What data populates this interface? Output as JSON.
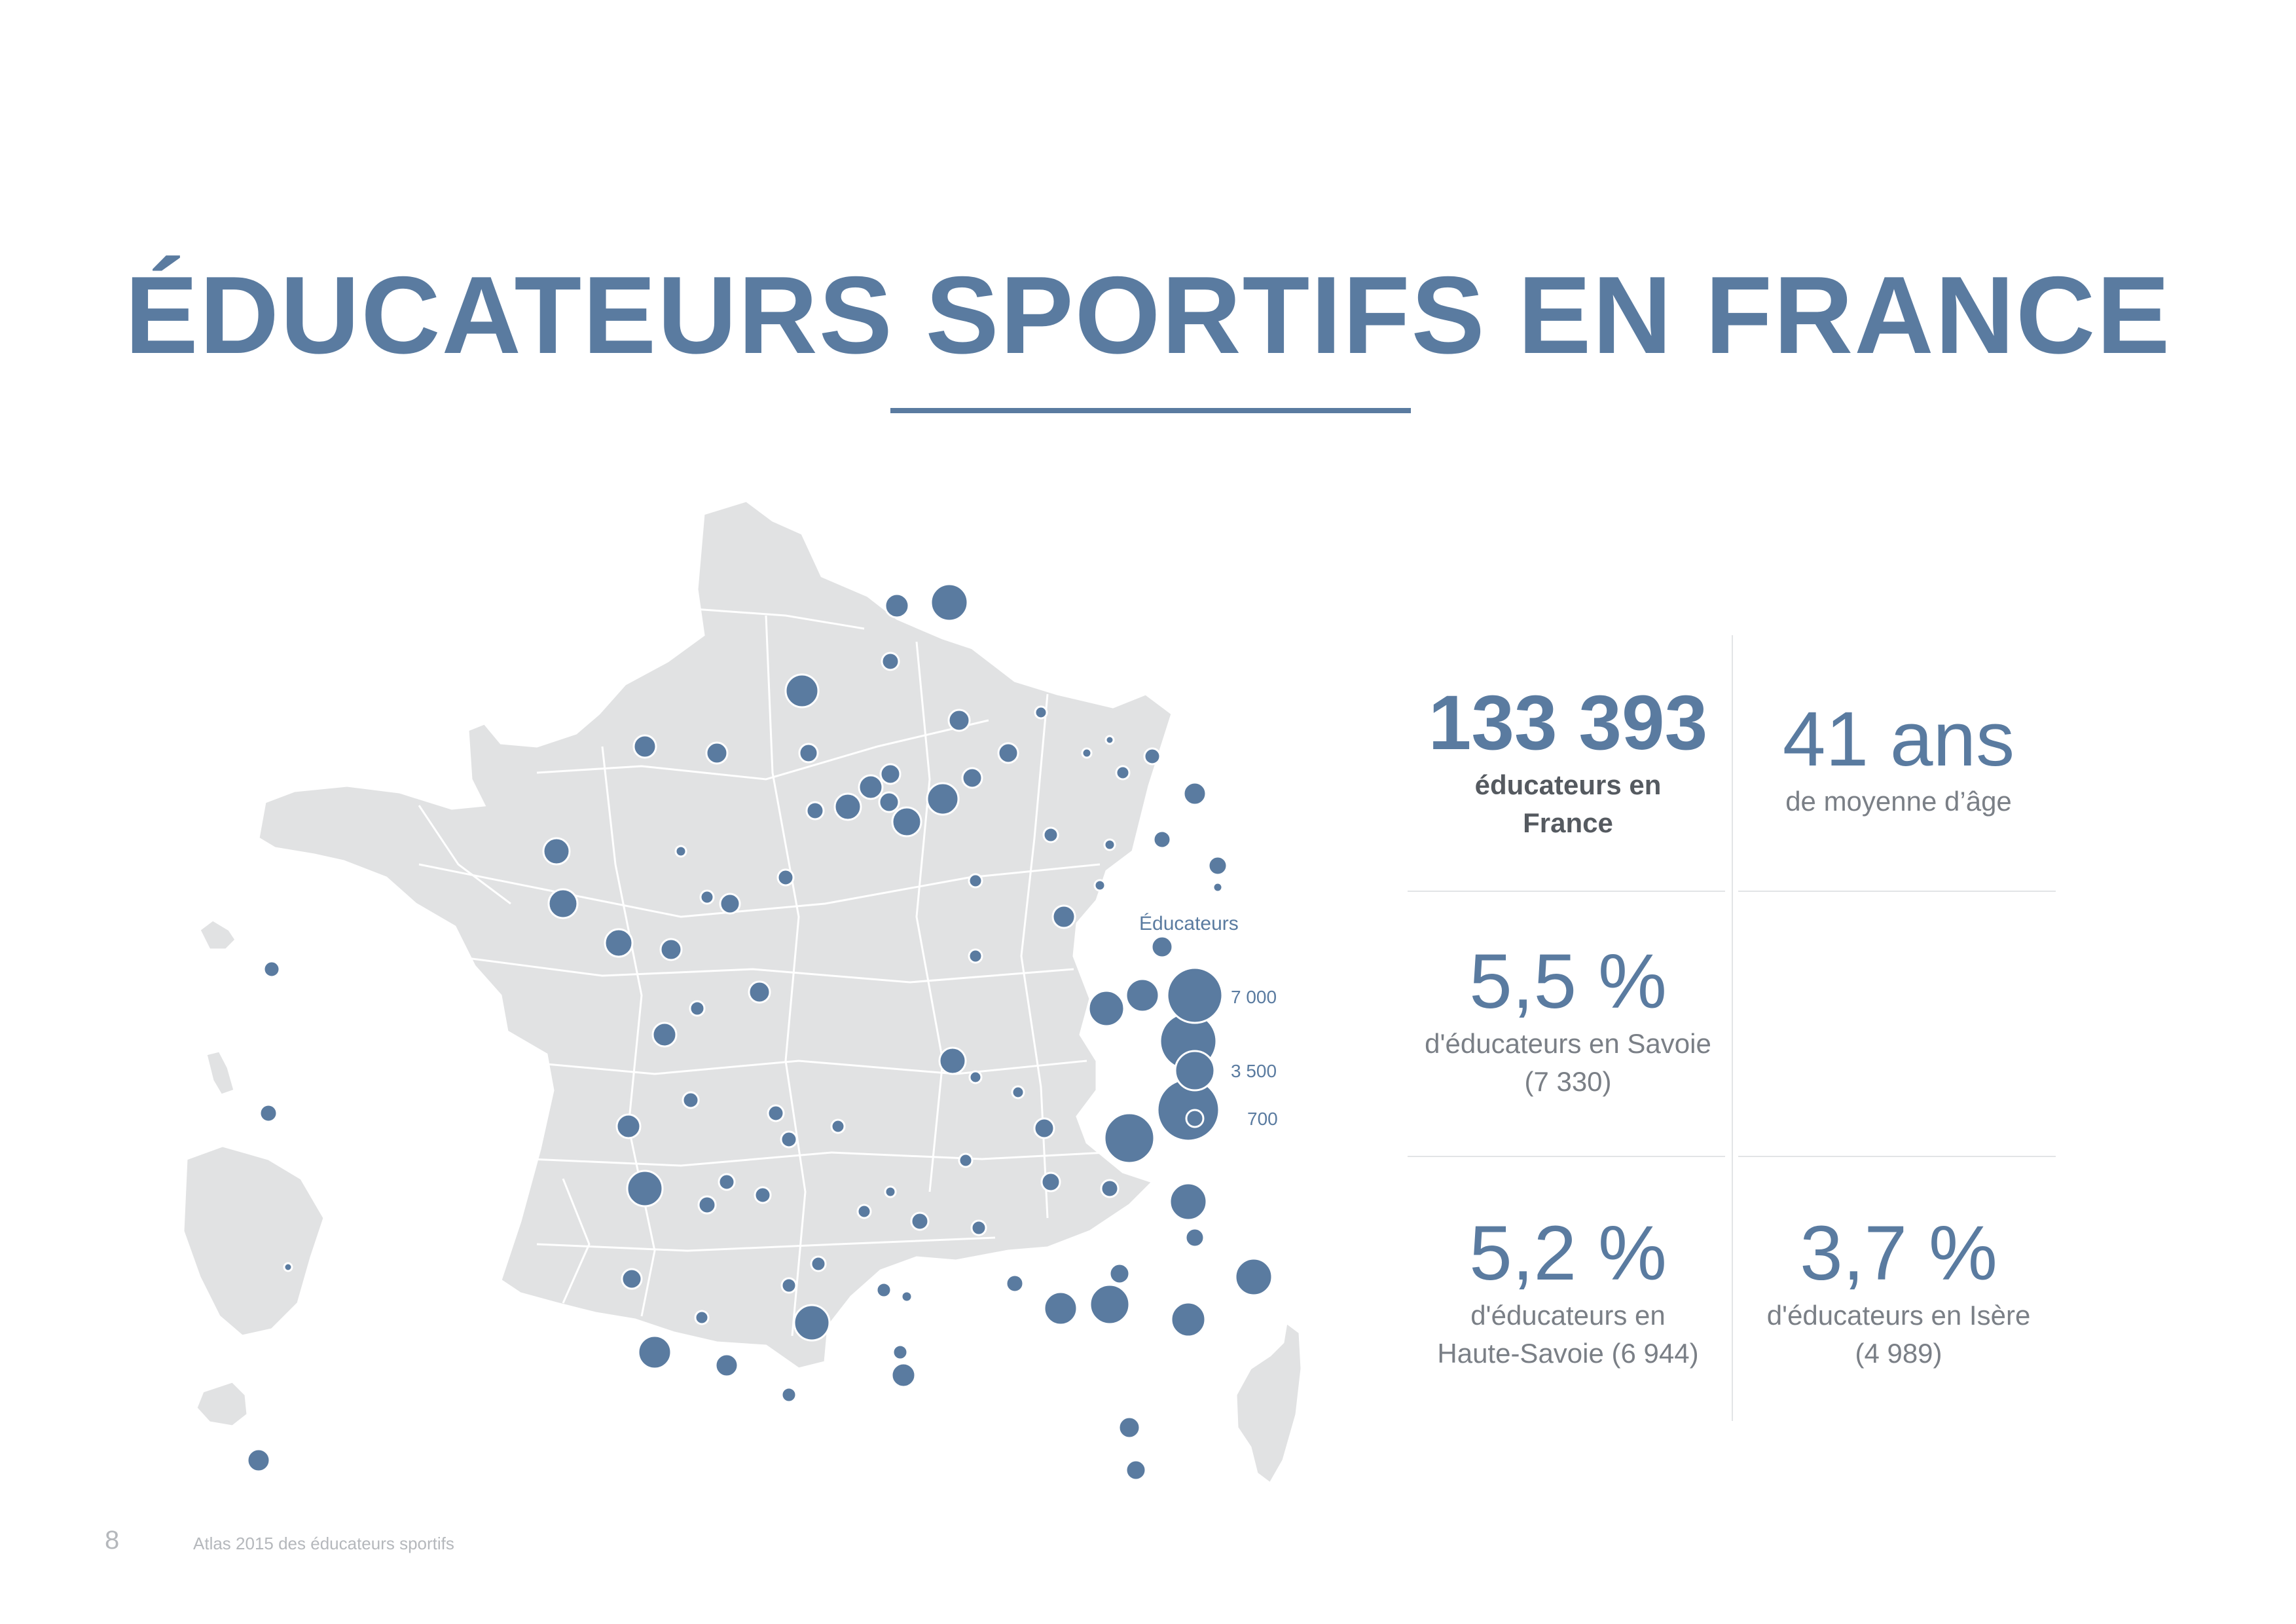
{
  "title": "ÉDUCATEURS SPORTIFS EN FRANCE",
  "legend": {
    "title": "Éducateurs",
    "items": [
      {
        "label": "7 000",
        "value": 7000
      },
      {
        "label": "3 500",
        "value": 3500
      },
      {
        "label": "700",
        "value": 700
      }
    ]
  },
  "stats": {
    "total": {
      "value": "133 393",
      "label_line1": "éducateurs en",
      "label_line2": "France"
    },
    "age": {
      "value": "41 ans",
      "label": "de moyenne d’âge"
    },
    "savoie": {
      "value": "5,5 %",
      "label_line1": "d'éducateurs en Savoie",
      "label_line2": "(7 330)"
    },
    "haute_savoie": {
      "value": "5,2 %",
      "label_line1": "d'éducateurs en",
      "label_line2": "Haute-Savoie (6 944)"
    },
    "isere": {
      "value": "3,7 %",
      "label_line1": "d'éducateurs en Isère",
      "label_line2": "(4 989)"
    }
  },
  "footer": {
    "page_number": "8",
    "text": "Atlas 2015 des éducateurs sportifs"
  },
  "colors": {
    "accent": "#5a7ba0",
    "land": "#e1e2e3",
    "muted_text": "#7a7f86"
  }
}
